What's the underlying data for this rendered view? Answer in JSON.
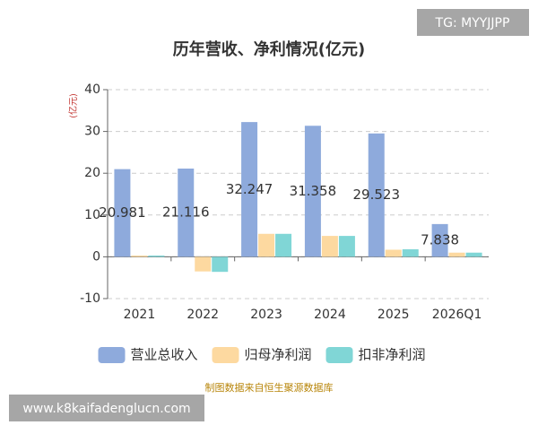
{
  "chart_data": {
    "type": "bar",
    "title": "历年营收、净利情况(亿元)",
    "y_label": "(亿元)",
    "categories": [
      "2021",
      "2022",
      "2023",
      "2024",
      "2025",
      "2026Q1"
    ],
    "series": [
      {
        "name": "营业总收入",
        "color": "#8eaadc",
        "values": [
          20.981,
          21.116,
          32.247,
          31.358,
          29.523,
          7.838
        ],
        "labels": true
      },
      {
        "name": "归母净利润",
        "color": "#fdd9a0",
        "values": [
          0.3,
          -3.5,
          5.5,
          5.0,
          1.7,
          1.0
        ]
      },
      {
        "name": "扣非净利润",
        "color": "#80d6d6",
        "values": [
          0.3,
          -3.6,
          5.5,
          5.0,
          1.8,
          1.0
        ]
      }
    ],
    "ylim": [
      -10,
      40
    ],
    "yticks": [
      -10,
      0,
      10,
      20,
      30,
      40
    ],
    "grid": true,
    "legend": "bottom",
    "source": "制图数据来自恒生聚源数据库",
    "watermark_top": "TG: MYYJJPP",
    "watermark_bottom": "www.k8kaifadenglucn.com"
  }
}
